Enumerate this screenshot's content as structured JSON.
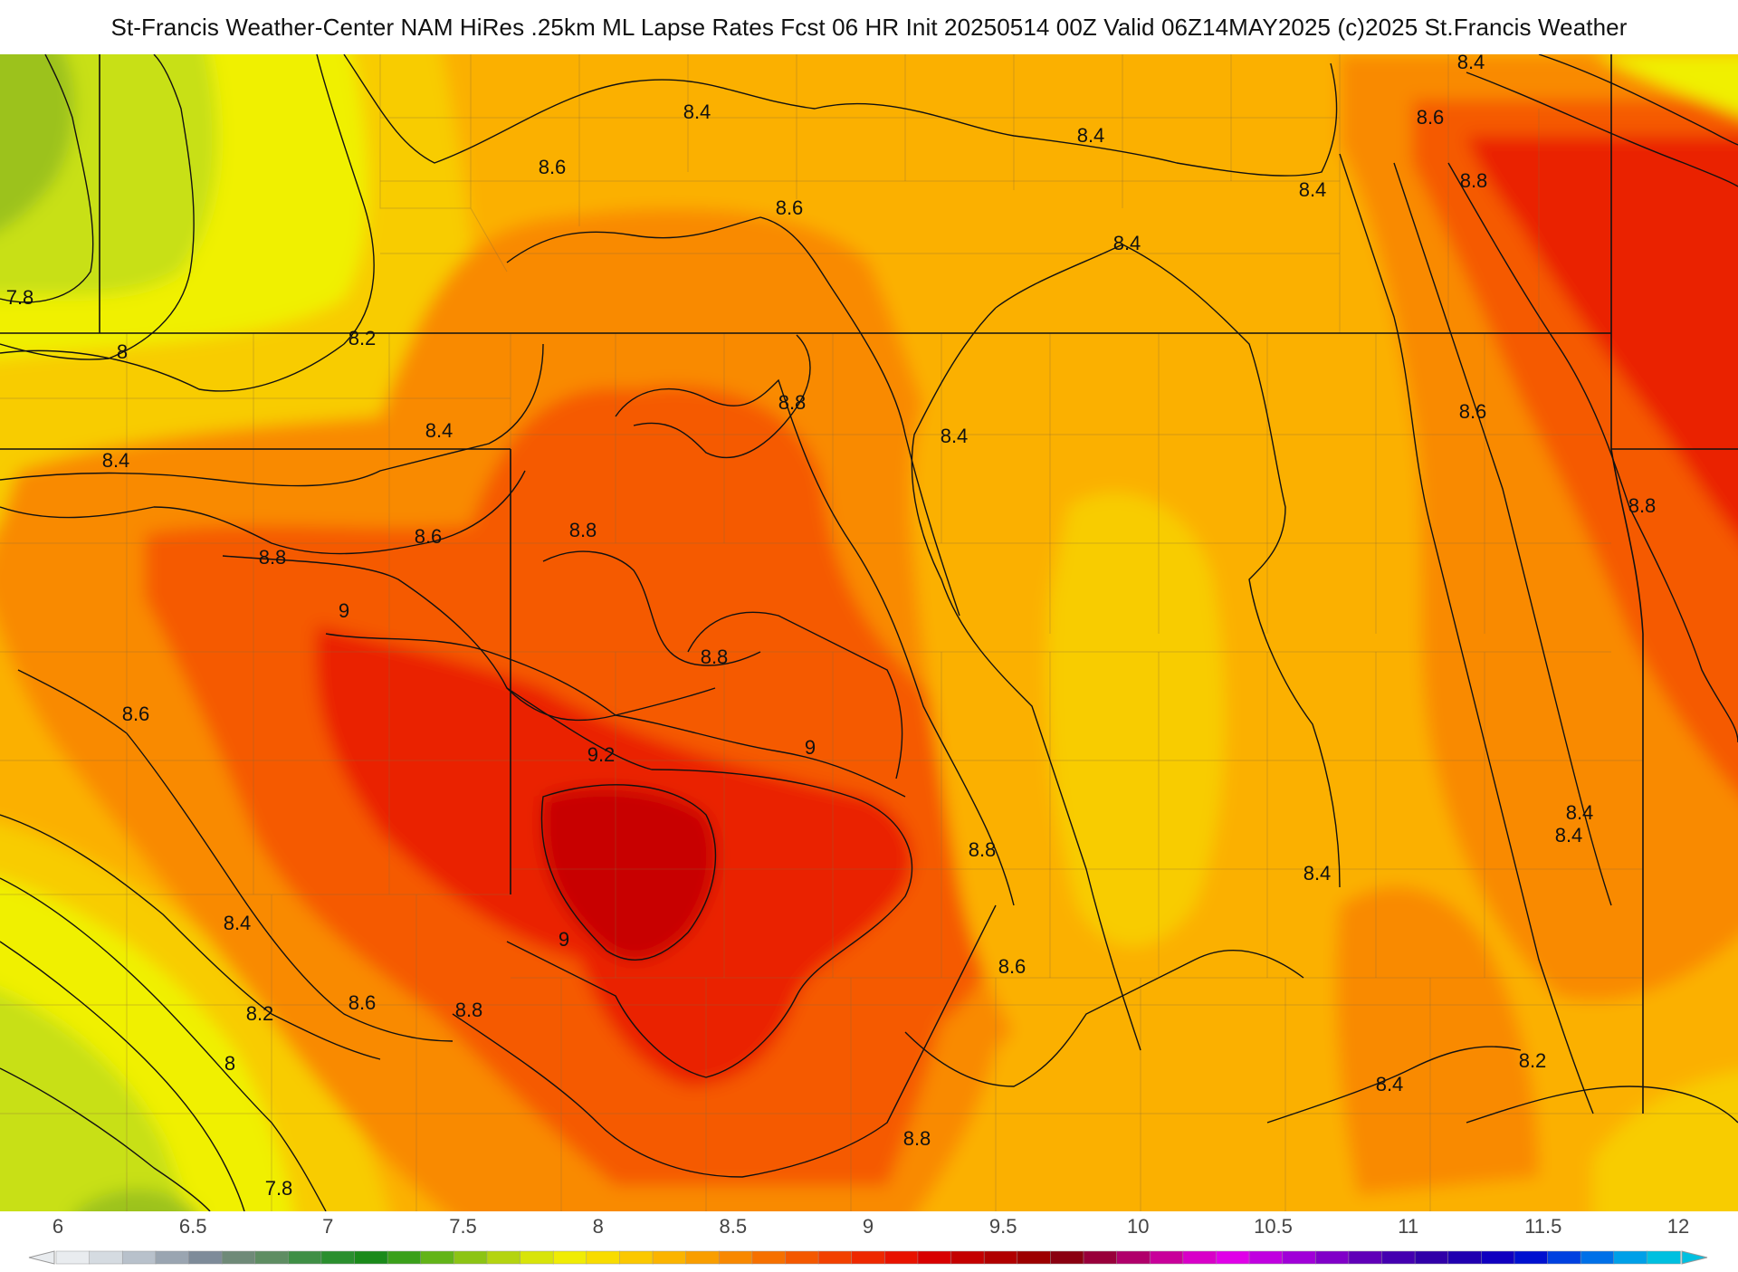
{
  "header": {
    "title": "St-Francis Weather-Center NAM HiRes .25km ML Lapse Rates  Fcst 06 HR Init 20250514 00Z  Valid 06Z14MAY2025    (c)2025 St.Francis Weather"
  },
  "colors": {
    "background": "#ffffff",
    "county_lines": "#8a6a3a",
    "state_lines": "#111111",
    "contours": "#111111",
    "palette": {
      "c7_6": "#9cc21e",
      "c7_8": "#c8e014",
      "c8_0": "#f0f000",
      "c8_2": "#f8cc00",
      "c8_4": "#fbb000",
      "c8_6": "#f98a00",
      "c8_8": "#f55a00",
      "c9_0": "#ea2200",
      "c9_2": "#c80000"
    }
  },
  "contour_labels": [
    {
      "text": "8.4"
    },
    {
      "text": "8.4"
    },
    {
      "text": "8.4"
    },
    {
      "text": "8.6"
    },
    {
      "text": "8.8"
    },
    {
      "text": "8.4"
    },
    {
      "text": "8.4"
    },
    {
      "text": "8.6"
    },
    {
      "text": "8.6"
    },
    {
      "text": "7.8"
    },
    {
      "text": "8"
    },
    {
      "text": "8.2"
    },
    {
      "text": "8.4"
    },
    {
      "text": "8.8"
    },
    {
      "text": "8.4"
    },
    {
      "text": "8.4"
    },
    {
      "text": "8.6"
    },
    {
      "text": "8.8"
    },
    {
      "text": "8.6"
    },
    {
      "text": "8.8"
    },
    {
      "text": "9"
    },
    {
      "text": "8.8"
    },
    {
      "text": "8.6"
    },
    {
      "text": "8.8"
    },
    {
      "text": "9.2"
    },
    {
      "text": "9"
    },
    {
      "text": "8.4"
    },
    {
      "text": "8.8"
    },
    {
      "text": "8.4"
    },
    {
      "text": "8.4"
    },
    {
      "text": "8.4"
    },
    {
      "text": "9"
    },
    {
      "text": "8.6"
    },
    {
      "text": "8.2"
    },
    {
      "text": "8.6"
    },
    {
      "text": "8.8"
    },
    {
      "text": "8"
    },
    {
      "text": "8.4"
    },
    {
      "text": "8.2"
    },
    {
      "text": "8.8"
    },
    {
      "text": "7.8"
    }
  ],
  "colorbar": {
    "tick_labels": [
      "6",
      "6.5",
      "7",
      "7.5",
      "8",
      "8.5",
      "9",
      "9.5",
      "10",
      "10.5",
      "11",
      "11.5",
      "12"
    ],
    "range": [
      6,
      12
    ],
    "colors": [
      "#e9ecef",
      "#d5dbe1",
      "#b8c1cb",
      "#9aa5b1",
      "#7e8b99",
      "#6f8a78",
      "#5e8d62",
      "#3f8f45",
      "#2a8f2e",
      "#1a8a1a",
      "#3aa01a",
      "#62b418",
      "#8cc414",
      "#b4d410",
      "#d8e40a",
      "#f0ec04",
      "#f8dc00",
      "#fbc800",
      "#fbb400",
      "#f99e00",
      "#f88800",
      "#f67000",
      "#f45800",
      "#f24000",
      "#ee2800",
      "#e81200",
      "#d80000",
      "#c40000",
      "#b00000",
      "#9c0000",
      "#8a0010",
      "#98003a",
      "#b0006a",
      "#c8009a",
      "#d800c8",
      "#e000e8",
      "#c000e0",
      "#a000d8",
      "#8000c8",
      "#6000b8",
      "#4400b0",
      "#3000a8",
      "#2000b0",
      "#1000c0",
      "#0010d0",
      "#0040e0",
      "#0070e8",
      "#00a0e8",
      "#00c0e0"
    ]
  }
}
